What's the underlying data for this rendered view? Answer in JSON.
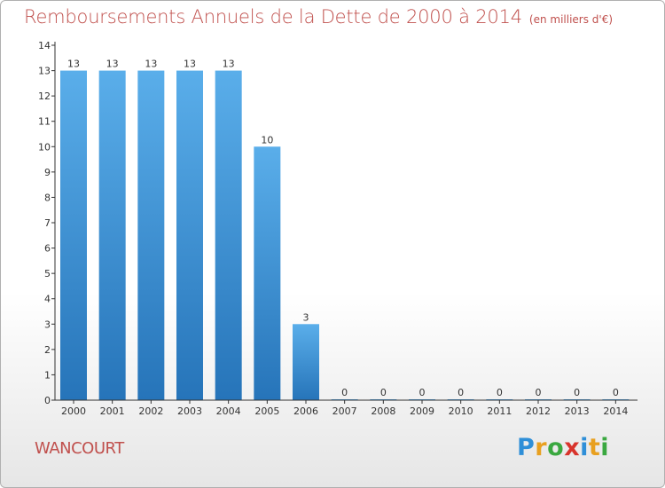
{
  "header": {
    "title": "Remboursements Annuels de la Dette de 2000 à 2014",
    "unit": "(en milliers d'€)"
  },
  "footer": {
    "commune": "WANCOURT",
    "logo_letters": [
      "P",
      "r",
      "o",
      "x",
      "i",
      "t",
      "i"
    ],
    "logo_colors": [
      "#2f8fd8",
      "#e8a020",
      "#3aa840",
      "#d8342c",
      "#2f8fd8",
      "#e8a020",
      "#3aa840"
    ]
  },
  "colors": {
    "bar": "#3f95dc",
    "title": "#c0504d"
  },
  "chart_data": {
    "type": "bar",
    "title": "Remboursements Annuels de la Dette de 2000 à 2014",
    "xlabel": "",
    "ylabel": "",
    "ylim": [
      0,
      14
    ],
    "yticks": [
      0,
      1,
      2,
      3,
      4,
      5,
      6,
      7,
      8,
      9,
      10,
      11,
      12,
      13,
      14
    ],
    "grid": false,
    "legend": "none",
    "categories": [
      "2000",
      "2001",
      "2002",
      "2003",
      "2004",
      "2005",
      "2006",
      "2007",
      "2008",
      "2009",
      "2010",
      "2011",
      "2012",
      "2013",
      "2014"
    ],
    "values": [
      13,
      13,
      13,
      13,
      13,
      10,
      3,
      0,
      0,
      0,
      0,
      0,
      0,
      0,
      0
    ],
    "data_labels": [
      "13",
      "13",
      "13",
      "13",
      "13",
      "10",
      "3",
      "0",
      "0",
      "0",
      "0",
      "0",
      "0",
      "0",
      "0"
    ]
  }
}
